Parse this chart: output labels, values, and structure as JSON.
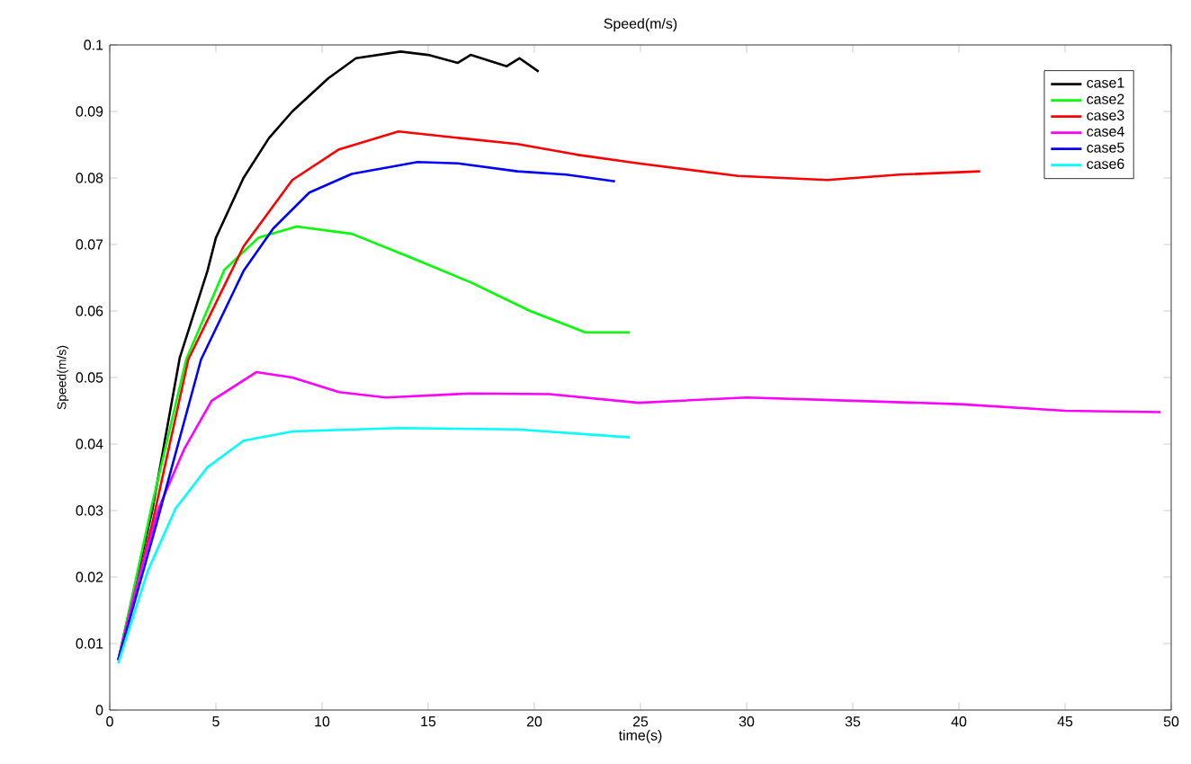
{
  "chart_data": {
    "type": "line",
    "title": "Speed(m/s)",
    "xlabel": "time(s)",
    "ylabel": "Speed(m/s)",
    "xlim": [
      0,
      50
    ],
    "ylim": [
      0,
      0.1
    ],
    "xticks": [
      0,
      5,
      10,
      15,
      20,
      25,
      30,
      35,
      40,
      45,
      50
    ],
    "yticks": [
      0,
      0.01,
      0.02,
      0.03,
      0.04,
      0.05,
      0.06,
      0.07,
      0.08,
      0.09,
      0.1
    ],
    "legend": "top right",
    "series": [
      {
        "name": "case1",
        "color": "#000000",
        "x": [
          0.4,
          2,
          3.3,
          4.6,
          5,
          6.3,
          7.5,
          8.6,
          10.3,
          11.6,
          13.7,
          15,
          16.4,
          17,
          18.7,
          19.3,
          20.2
        ],
        "values": [
          0.0075,
          0.03,
          0.053,
          0.066,
          0.071,
          0.08,
          0.086,
          0.09,
          0.095,
          0.098,
          0.099,
          0.0985,
          0.0973,
          0.0985,
          0.0968,
          0.098,
          0.096
        ]
      },
      {
        "name": "case2",
        "color": "#00ff00",
        "x": [
          0.4,
          2,
          3.6,
          5.4,
          7,
          8.8,
          11.4,
          14.2,
          17,
          19.8,
          22.4,
          24.5
        ],
        "values": [
          0.0075,
          0.031,
          0.0527,
          0.0662,
          0.071,
          0.0727,
          0.0716,
          0.068,
          0.0643,
          0.06,
          0.0568,
          0.0568
        ]
      },
      {
        "name": "case3",
        "color": "#ff0000",
        "x": [
          0.4,
          2,
          3.7,
          6.3,
          8.6,
          10.8,
          13.6,
          16.5,
          19.2,
          22,
          24.9,
          29.6,
          33.8,
          37.2,
          41
        ],
        "values": [
          0.0075,
          0.028,
          0.0527,
          0.0697,
          0.0797,
          0.0843,
          0.087,
          0.086,
          0.0851,
          0.0835,
          0.0822,
          0.0803,
          0.0797,
          0.0805,
          0.081
        ]
      },
      {
        "name": "case4",
        "color": "#ff00ff",
        "x": [
          0.4,
          1.2,
          2.3,
          3.5,
          4.8,
          6.9,
          8.6,
          10.8,
          13,
          17,
          20.7,
          24.9,
          30,
          35,
          40,
          45,
          49.5
        ],
        "values": [
          0.0075,
          0.018,
          0.0303,
          0.0392,
          0.0465,
          0.0508,
          0.05,
          0.0478,
          0.047,
          0.0476,
          0.0475,
          0.0462,
          0.047,
          0.0465,
          0.046,
          0.045,
          0.0448
        ]
      },
      {
        "name": "case5",
        "color": "#0000ff",
        "x": [
          0.4,
          2.2,
          4.3,
          6.3,
          7.7,
          9.4,
          11.4,
          14.5,
          16.4,
          19.2,
          21.5,
          23.8
        ],
        "values": [
          0.0075,
          0.028,
          0.0527,
          0.066,
          0.0724,
          0.0778,
          0.0806,
          0.0824,
          0.0822,
          0.081,
          0.0805,
          0.0795
        ]
      },
      {
        "name": "case6",
        "color": "#00ffff",
        "x": [
          0.4,
          1.8,
          3.1,
          4.6,
          6.3,
          8.6,
          13.6,
          19.2,
          24.5
        ],
        "values": [
          0.007,
          0.021,
          0.0303,
          0.0365,
          0.0405,
          0.0419,
          0.0424,
          0.0422,
          0.041
        ]
      }
    ]
  }
}
